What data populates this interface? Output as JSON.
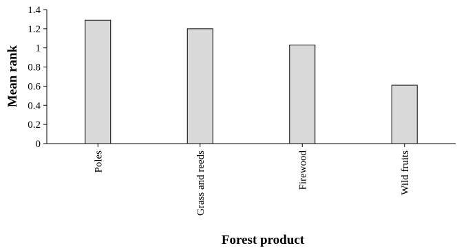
{
  "chart_data": {
    "type": "bar",
    "title": "",
    "xlabel": "Forest product",
    "ylabel": "Mean rank",
    "categories": [
      "Poles",
      "Grass and reeds",
      "Firewood",
      "Wild fruits"
    ],
    "values": [
      1.29,
      1.2,
      1.03,
      0.61
    ],
    "ylim": [
      0,
      1.4
    ],
    "yticks": [
      "0",
      "0.2",
      "0.4",
      "0.6",
      "0.8",
      "1",
      "1.2",
      "1.4"
    ],
    "grid": false,
    "legend": "none",
    "bar_color": "#d9d9d9",
    "bar_edge_color": "#000000"
  }
}
